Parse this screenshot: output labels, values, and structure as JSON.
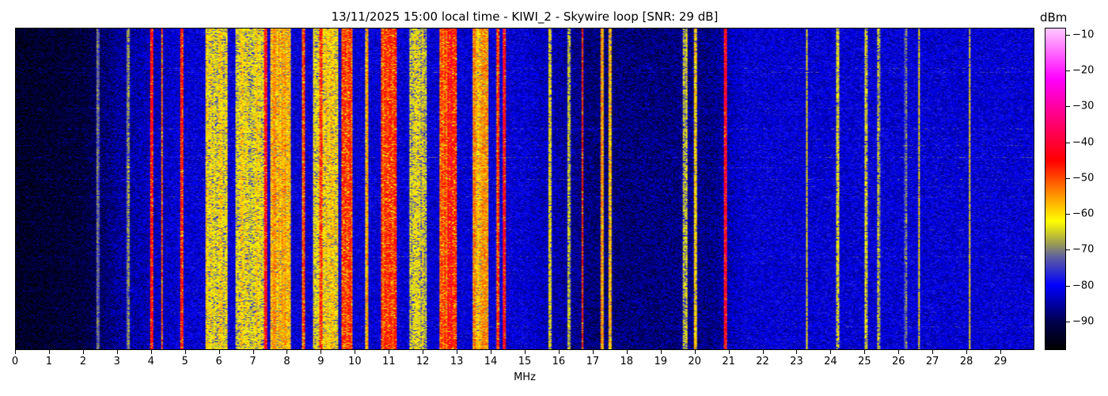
{
  "chart_data": {
    "type": "heatmap",
    "title": "13/11/2025 15:00 local time - KIWI_2 - Skywire loop [SNR: 29 dB]",
    "xlabel": "MHz",
    "ylabel": "",
    "xlim": [
      0,
      30
    ],
    "x_ticks": [
      0,
      1,
      2,
      3,
      4,
      5,
      6,
      7,
      8,
      9,
      10,
      11,
      12,
      13,
      14,
      15,
      16,
      17,
      18,
      19,
      20,
      21,
      22,
      23,
      24,
      25,
      26,
      27,
      28,
      29
    ],
    "colorbar": {
      "label": "dBm",
      "range": [
        -98,
        -8
      ],
      "ticks": [
        -10,
        -20,
        -30,
        -40,
        -50,
        -60,
        -70,
        -80,
        -90
      ],
      "colormap": [
        {
          "v": -98,
          "color": "#000000"
        },
        {
          "v": -90,
          "color": "#000050"
        },
        {
          "v": -80,
          "color": "#0000ff"
        },
        {
          "v": -72,
          "color": "#6060a0"
        },
        {
          "v": -68,
          "color": "#a0a050"
        },
        {
          "v": -62,
          "color": "#ffff00"
        },
        {
          "v": -55,
          "color": "#ff9900"
        },
        {
          "v": -45,
          "color": "#ff0000"
        },
        {
          "v": -30,
          "color": "#ff00a0"
        },
        {
          "v": -22,
          "color": "#ff00ff"
        },
        {
          "v": -8,
          "color": "#ffc8ff"
        }
      ]
    },
    "noise_floor": [
      {
        "mhz": 0,
        "dbm": -94
      },
      {
        "mhz": 2,
        "dbm": -92
      },
      {
        "mhz": 3,
        "dbm": -86
      },
      {
        "mhz": 5,
        "dbm": -82
      },
      {
        "mhz": 15,
        "dbm": -82
      },
      {
        "mhz": 17,
        "dbm": -88
      },
      {
        "mhz": 20.5,
        "dbm": -87
      },
      {
        "mhz": 21.5,
        "dbm": -82
      },
      {
        "mhz": 30,
        "dbm": -82
      }
    ],
    "signals": [
      {
        "f0": 2.4,
        "f1": 2.43,
        "dbm": -72
      },
      {
        "f0": 3.3,
        "f1": 3.33,
        "dbm": -72
      },
      {
        "f0": 3.98,
        "f1": 4.03,
        "dbm": -45
      },
      {
        "f0": 4.3,
        "f1": 4.33,
        "dbm": -47
      },
      {
        "f0": 4.88,
        "f1": 4.92,
        "dbm": -48
      },
      {
        "f0": 5.6,
        "f1": 6.2,
        "dbm": -62
      },
      {
        "f0": 6.5,
        "f1": 7.3,
        "dbm": -62
      },
      {
        "f0": 7.35,
        "f1": 7.4,
        "dbm": -45
      },
      {
        "f0": 7.5,
        "f1": 8.1,
        "dbm": -56
      },
      {
        "f0": 8.45,
        "f1": 8.5,
        "dbm": -50
      },
      {
        "f0": 8.8,
        "f1": 9.5,
        "dbm": -60
      },
      {
        "f0": 8.95,
        "f1": 9.0,
        "dbm": -44
      },
      {
        "f0": 9.6,
        "f1": 9.9,
        "dbm": -48
      },
      {
        "f0": 10.3,
        "f1": 10.35,
        "dbm": -58
      },
      {
        "f0": 10.8,
        "f1": 11.2,
        "dbm": -48
      },
      {
        "f0": 11.6,
        "f1": 12.1,
        "dbm": -64
      },
      {
        "f0": 12.5,
        "f1": 13.0,
        "dbm": -50
      },
      {
        "f0": 12.75,
        "f1": 12.85,
        "dbm": -42
      },
      {
        "f0": 13.5,
        "f1": 13.9,
        "dbm": -55
      },
      {
        "f0": 14.2,
        "f1": 14.25,
        "dbm": -50
      },
      {
        "f0": 14.35,
        "f1": 14.42,
        "dbm": -42
      },
      {
        "f0": 15.7,
        "f1": 15.75,
        "dbm": -62
      },
      {
        "f0": 16.3,
        "f1": 16.33,
        "dbm": -66
      },
      {
        "f0": 16.68,
        "f1": 16.72,
        "dbm": -45
      },
      {
        "f0": 17.25,
        "f1": 17.3,
        "dbm": -55
      },
      {
        "f0": 17.5,
        "f1": 17.55,
        "dbm": -56
      },
      {
        "f0": 19.7,
        "f1": 19.76,
        "dbm": -64
      },
      {
        "f0": 20.0,
        "f1": 20.04,
        "dbm": -62
      },
      {
        "f0": 20.9,
        "f1": 20.96,
        "dbm": -42
      },
      {
        "f0": 23.3,
        "f1": 23.33,
        "dbm": -64
      },
      {
        "f0": 24.2,
        "f1": 24.23,
        "dbm": -63
      },
      {
        "f0": 25.05,
        "f1": 25.08,
        "dbm": -63
      },
      {
        "f0": 25.4,
        "f1": 25.48,
        "dbm": -68
      },
      {
        "f0": 26.2,
        "f1": 26.25,
        "dbm": -70
      },
      {
        "f0": 26.6,
        "f1": 26.63,
        "dbm": -60
      },
      {
        "f0": 28.1,
        "f1": 28.13,
        "dbm": -58
      }
    ]
  }
}
